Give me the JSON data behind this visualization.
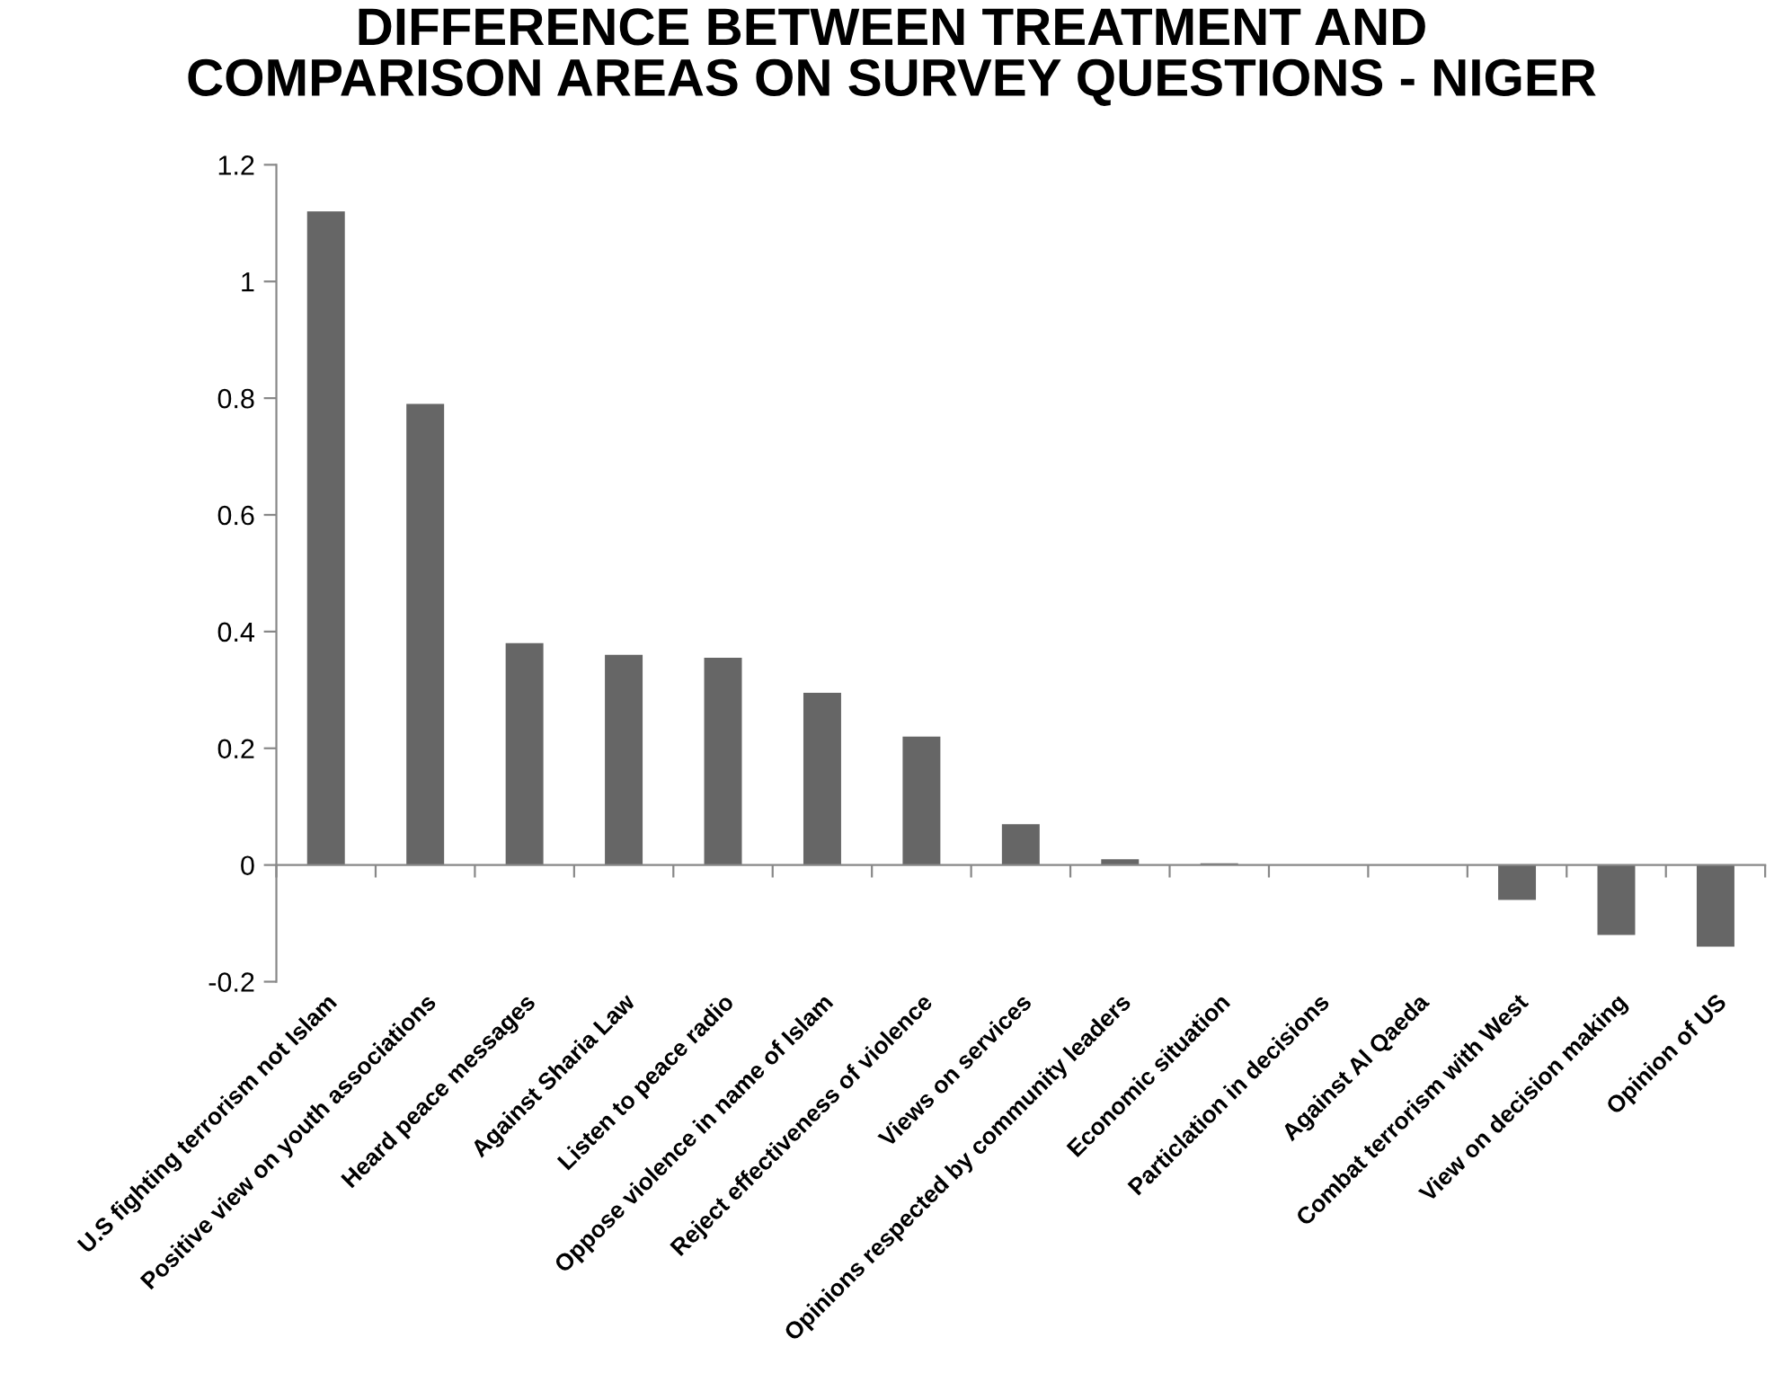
{
  "chart_data": {
    "type": "bar",
    "title": "DIFFERENCE BETWEEN TREATMENT AND\nCOMPARISON AREAS ON SURVEY QUESTIONS - NIGER",
    "categories": [
      "U.S fighting terrorism not Islam",
      "Positive view on youth associations",
      "Heard peace messages",
      "Against Sharia Law",
      "Listen to peace radio",
      "Oppose violence in name of Islam",
      "Reject effectiveness of violence",
      "Views on services",
      "Opinions respected by community leaders",
      "Economic situation",
      "Particlation in decisions",
      "Against Al Qaeda",
      "Combat terrorism with West",
      "View on decision making",
      "Opinion of US"
    ],
    "values": [
      1.12,
      0.79,
      0.38,
      0.36,
      0.355,
      0.295,
      0.22,
      0.07,
      0.01,
      0.003,
      0,
      0,
      -0.06,
      -0.12,
      -0.14
    ],
    "color": "#666666",
    "ylim": [
      -0.2,
      1.2
    ],
    "yticks": [
      {
        "value": -0.2,
        "label": "-0.2"
      },
      0,
      0.2,
      0.4,
      0.6,
      0.8,
      1,
      1.2
    ],
    "legend": false
  }
}
